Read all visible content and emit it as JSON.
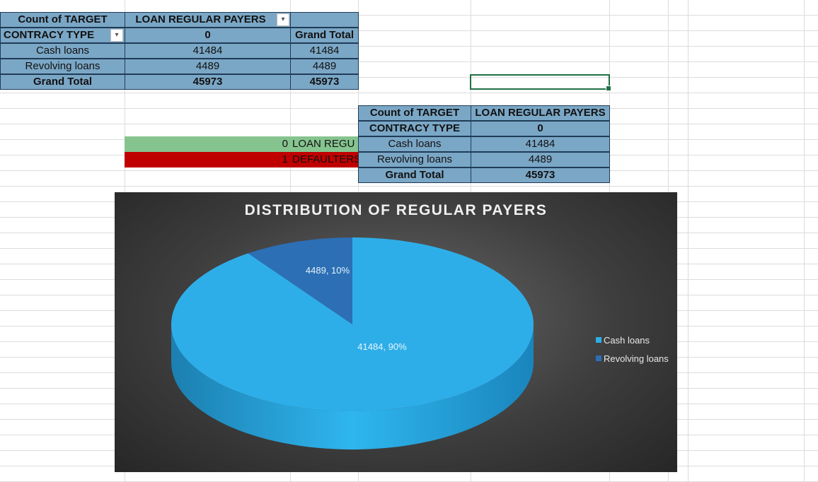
{
  "pivot_top": {
    "header_row": [
      "Count of TARGET",
      "LOAN REGULAR PAYERS",
      ""
    ],
    "sub_header_row": [
      "CONTRACY TYPE",
      "0",
      "Grand Total"
    ],
    "rows": [
      {
        "label": "Cash loans",
        "value": "41484",
        "total": "41484"
      },
      {
        "label": "Revolving loans",
        "value": "4489",
        "total": "4489"
      }
    ],
    "grand_total": {
      "label": "Grand Total",
      "value": "45973",
      "total": "45973"
    }
  },
  "key_legend": [
    {
      "code": "0",
      "text": "LOAN REGU",
      "color": "#86c48f"
    },
    {
      "code": "1",
      "text": "DEFAULTERS",
      "color": "#c00000"
    }
  ],
  "pivot_right": {
    "header_row": [
      "Count of TARGET",
      "LOAN REGULAR PAYERS"
    ],
    "sub_header_row": [
      "CONTRACY TYPE",
      "0"
    ],
    "rows": [
      {
        "label": "Cash loans",
        "value": "41484"
      },
      {
        "label": "Revolving loans",
        "value": "4489"
      }
    ],
    "grand_total": {
      "label": "Grand Total",
      "value": "45973"
    }
  },
  "icons": {
    "filter": "filter-dropdown-icon",
    "dropdown": "chevron-down-icon"
  },
  "chart_data": {
    "type": "pie",
    "title": "DISTRIBUTION OF REGULAR PAYERS",
    "categories": [
      "Cash loans",
      "Revolving loans"
    ],
    "values": [
      41484,
      4489
    ],
    "data_labels": [
      "41484, 90%",
      "4489, 10%"
    ],
    "colors": [
      "#2eaee8",
      "#2c6fb5"
    ],
    "legend_position": "right"
  }
}
